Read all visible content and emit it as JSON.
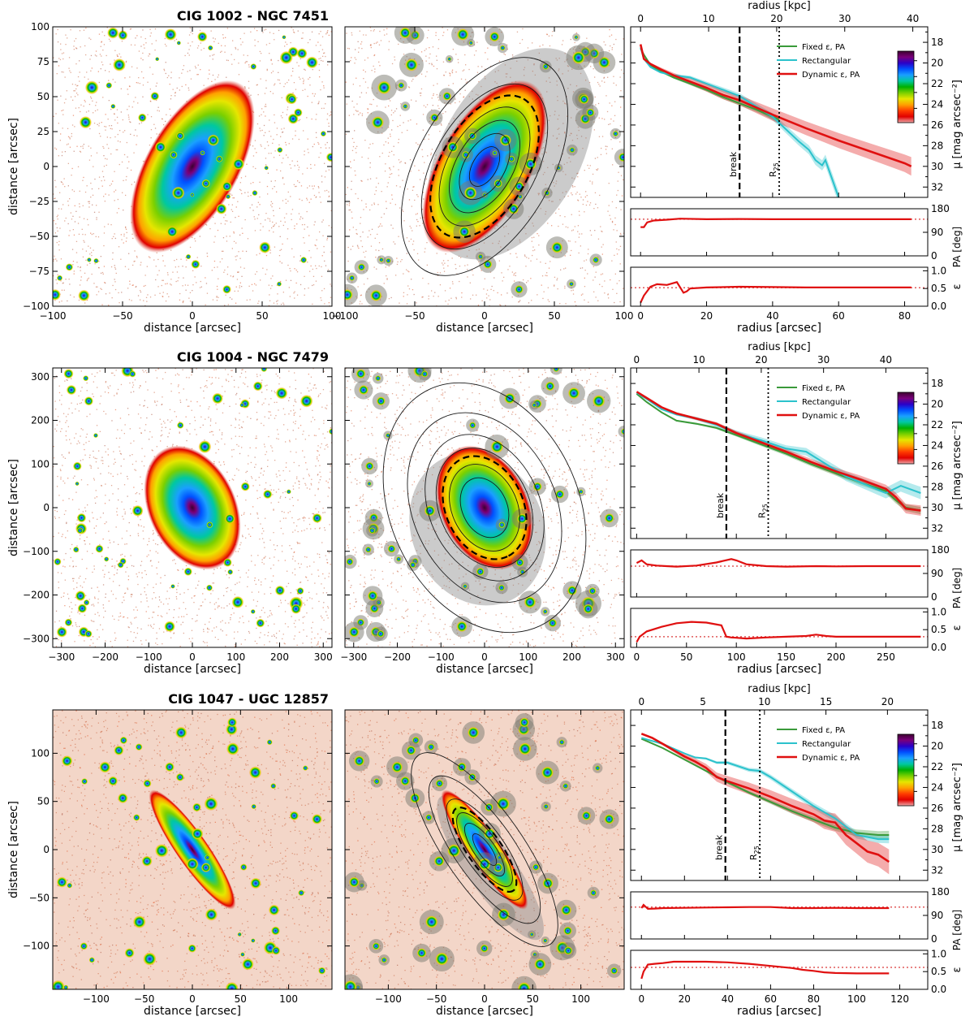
{
  "colors": {
    "fixed": "#3a9a3a",
    "rectangular": "#2bc2cc",
    "dynamic": "#e01010",
    "reference_line": "#e05a5a"
  },
  "colormap": [
    "#3d0030",
    "#7a007a",
    "#2a00c8",
    "#0050ff",
    "#1aa0ff",
    "#00c8a0",
    "#00b000",
    "#7ad000",
    "#e6e600",
    "#ffa000",
    "#ff3c00",
    "#e00000",
    "#f0a8a8"
  ],
  "chart_data": [
    {
      "name": "CIG 1002 - NGC 7451",
      "title": "CIG 1002  -  NGC  7451",
      "image_panels": {
        "xlabel": "distance [arcsec]",
        "ylabel": "distance [arcsec]",
        "xlim": [
          -100,
          100
        ],
        "ylim": [
          -100,
          100
        ],
        "xticks": [
          -100,
          -50,
          0,
          50,
          100
        ],
        "yticks": [
          -100,
          -75,
          -50,
          -25,
          0,
          25,
          50,
          75,
          100
        ],
        "galaxy": {
          "position_angle_deg": 150,
          "ellipticity": 0.52,
          "size_arcsec": 55,
          "background": "white"
        },
        "isophote_radii_arcsec": [
          12,
          20,
          28,
          36,
          50,
          66
        ],
        "break_radius_arcsec": 43
      },
      "profile": {
        "type": "line",
        "top_axis_label": "radius [kpc]",
        "top_ticks": [
          0,
          10,
          20,
          30,
          40
        ],
        "kpc_per_arcsec": 0.485,
        "xlim": [
          -3,
          87
        ],
        "ylabel": "μ [mag arcsec⁻²]",
        "ylim": [
          33,
          16.5
        ],
        "yticks": [
          18,
          20,
          22,
          24,
          26,
          28,
          30,
          32
        ],
        "colorbar_ticks": [
          20,
          22,
          24,
          26
        ],
        "break_x": 30,
        "r25_x": 42,
        "break_label": "break",
        "r25_label": "R25",
        "legend": [
          "Fixed ε, PA",
          "Rectangular",
          "Dynamic ε, PA"
        ],
        "series": [
          {
            "name": "Fixed ε, PA",
            "x": [
              0,
              1,
              3,
              6,
              10,
              15,
              20,
              25,
              30,
              35,
              40,
              42
            ],
            "y": [
              18.6,
              19.2,
              20.2,
              20.8,
              21.4,
              22.0,
              22.6,
              23.3,
              23.9,
              24.5,
              25.2,
              25.5
            ],
            "band": 0.3
          },
          {
            "name": "Rectangular",
            "x": [
              0,
              1,
              3,
              6,
              10,
              15,
              20,
              25,
              30,
              35,
              40,
              44,
              48,
              51,
              53,
              55,
              56,
              58,
              60
            ],
            "y": [
              18.5,
              19.6,
              20.4,
              20.9,
              21.2,
              21.4,
              22.0,
              22.6,
              23.2,
              24.2,
              25.2,
              26.4,
              27.6,
              28.4,
              29.4,
              29.9,
              29.4,
              31.2,
              33
            ],
            "band": 0.6
          },
          {
            "name": "Dynamic ε, PA",
            "x": [
              0,
              1,
              3,
              6,
              10,
              15,
              20,
              25,
              30,
              35,
              40,
              50,
              60,
              70,
              80,
              82
            ],
            "y": [
              18.2,
              19.6,
              20.1,
              20.6,
              21.2,
              21.8,
              22.4,
              23.1,
              23.6,
              24.3,
              25.0,
              26.3,
              27.5,
              28.6,
              29.7,
              30.0
            ],
            "band": 0.9
          }
        ],
        "pa": {
          "ylabel": "PA [deg]",
          "ylim": [
            0,
            180
          ],
          "yticks": [
            0,
            90,
            180
          ],
          "ref": 140,
          "x": [
            0,
            1,
            2,
            4,
            8,
            12,
            20,
            30,
            40,
            50,
            60,
            70,
            80,
            82
          ],
          "y": [
            110,
            110,
            128,
            135,
            138,
            142,
            140,
            141,
            140,
            140,
            140,
            140,
            140,
            140
          ]
        },
        "eps": {
          "ylabel": "ε",
          "ylim": [
            0,
            1.1
          ],
          "yticks": [
            0.0,
            0.5,
            1.0
          ],
          "ref": 0.52,
          "x": [
            0,
            1,
            3,
            5,
            8,
            11,
            13,
            14,
            15,
            20,
            30,
            40,
            50,
            60,
            70,
            82
          ],
          "y": [
            0.1,
            0.3,
            0.55,
            0.62,
            0.6,
            0.68,
            0.38,
            0.42,
            0.5,
            0.53,
            0.55,
            0.54,
            0.53,
            0.53,
            0.53,
            0.53
          ]
        },
        "xlabel": "radius [arcsec]",
        "xticks": [
          0,
          20,
          40,
          60,
          80
        ]
      }
    },
    {
      "name": "CIG 1004 - NGC 7479",
      "title": "CIG 1004  -  NGC  7479",
      "image_panels": {
        "xlabel": "distance [arcsec]",
        "ylabel": "distance [arcsec]",
        "xlim": [
          -320,
          320
        ],
        "ylim": [
          -320,
          320
        ],
        "xticks": [
          -300,
          -200,
          -100,
          0,
          100,
          200,
          300
        ],
        "yticks": [
          -300,
          -200,
          -100,
          0,
          100,
          200,
          300
        ],
        "galaxy": {
          "position_angle_deg": 25,
          "ellipticity": 0.33,
          "size_arcsec": 120,
          "background": "white"
        },
        "isophote_radii_arcsec": [
          55,
          80,
          110,
          135,
          175,
          230
        ],
        "break_radius_arcsec": 95
      },
      "profile": {
        "type": "line",
        "top_axis_label": "radius [kpc]",
        "top_ticks": [
          0,
          10,
          20,
          30,
          40
        ],
        "kpc_per_arcsec": 0.16,
        "xlim": [
          -6,
          292
        ],
        "ylabel": "μ [mag arcsec⁻²]",
        "ylim": [
          33,
          16.5
        ],
        "yticks": [
          18,
          20,
          22,
          24,
          26,
          28,
          30,
          32
        ],
        "colorbar_ticks": [
          20,
          22,
          24,
          26
        ],
        "break_x": 90,
        "r25_x": 132,
        "break_label": "break",
        "r25_label": "R25",
        "legend": [
          "Fixed ε, PA",
          "Rectangular",
          "Dynamic ε, PA"
        ],
        "series": [
          {
            "name": "Fixed ε, PA",
            "x": [
              0,
              10,
              25,
              40,
              60,
              80,
              100,
              125,
              150,
              175,
              200,
              225,
              250,
              260,
              270,
              285
            ],
            "y": [
              19.0,
              19.8,
              20.8,
              21.6,
              21.9,
              22.3,
              23.0,
              23.9,
              24.8,
              25.8,
              26.7,
              27.6,
              28.4,
              29.3,
              30.0,
              30.3
            ],
            "band": 0.35
          },
          {
            "name": "Rectangular",
            "x": [
              0,
              10,
              25,
              40,
              60,
              80,
              100,
              125,
              150,
              170,
              190,
              210,
              230,
              250,
              265,
              285
            ],
            "y": [
              18.9,
              19.5,
              20.5,
              21.0,
              21.4,
              22.0,
              22.8,
              23.5,
              24.3,
              24.6,
              25.8,
              27.0,
              27.8,
              28.6,
              27.9,
              28.6
            ],
            "band": 0.6
          },
          {
            "name": "Dynamic ε, PA",
            "x": [
              0,
              10,
              25,
              40,
              60,
              80,
              100,
              125,
              150,
              175,
              200,
              225,
              250,
              260,
              270,
              285
            ],
            "y": [
              18.8,
              19.4,
              20.3,
              20.9,
              21.4,
              21.9,
              22.8,
              23.7,
              24.6,
              25.6,
              26.5,
              27.3,
              28.2,
              29.0,
              30.1,
              30.3
            ],
            "band": 0.5
          }
        ],
        "pa": {
          "ylabel": "PA [deg]",
          "ylim": [
            0,
            180
          ],
          "yticks": [
            0,
            90,
            180
          ],
          "ref": 118,
          "x": [
            0,
            5,
            10,
            20,
            30,
            40,
            60,
            80,
            95,
            100,
            110,
            130,
            150,
            180,
            200,
            230,
            260,
            285
          ],
          "y": [
            130,
            140,
            125,
            120,
            118,
            116,
            120,
            132,
            145,
            140,
            125,
            118,
            116,
            118,
            117,
            118,
            118,
            118
          ]
        },
        "eps": {
          "ylabel": "ε",
          "ylim": [
            0,
            1.1
          ],
          "yticks": [
            0.0,
            0.5,
            1.0
          ],
          "ref": 0.3,
          "x": [
            0,
            3,
            10,
            25,
            40,
            55,
            70,
            85,
            90,
            95,
            100,
            110,
            130,
            150,
            170,
            180,
            190,
            200,
            220,
            250,
            285
          ],
          "y": [
            0.15,
            0.3,
            0.45,
            0.58,
            0.68,
            0.72,
            0.7,
            0.62,
            0.3,
            0.28,
            0.27,
            0.25,
            0.28,
            0.3,
            0.32,
            0.36,
            0.32,
            0.3,
            0.3,
            0.3,
            0.3
          ]
        },
        "xlabel": "radius [arcsec]",
        "xticks": [
          0,
          50,
          100,
          150,
          200,
          250
        ]
      }
    },
    {
      "name": "CIG 1047 - UGC 12857",
      "title": "CIG 1047  -  UGC  12857",
      "image_panels": {
        "xlabel": "distance [arcsec]",
        "ylabel": "distance [arcsec]",
        "xlim": [
          -145,
          145
        ],
        "ylim": [
          -145,
          145
        ],
        "xticks": [
          -100,
          -50,
          0,
          50,
          100
        ],
        "yticks": [
          -100,
          -50,
          0,
          50,
          100
        ],
        "galaxy": {
          "position_angle_deg": 35,
          "ellipticity": 0.78,
          "size_arcsec": 60,
          "background": "#f3d6c8"
        },
        "isophote_radii_arcsec": [
          15,
          25,
          35,
          48,
          70,
          92
        ],
        "break_radius_arcsec": 40
      },
      "profile": {
        "type": "line",
        "top_axis_label": "radius [kpc]",
        "top_ticks": [
          0,
          5,
          10,
          15,
          20
        ],
        "kpc_per_arcsec": 0.175,
        "xlim": [
          -5,
          133
        ],
        "ylabel": "μ [mag arcsec⁻²]",
        "ylim": [
          33,
          16.5
        ],
        "yticks": [
          18,
          20,
          22,
          24,
          26,
          28,
          30,
          32
        ],
        "colorbar_ticks": [
          20,
          22,
          24,
          26
        ],
        "break_x": 39,
        "r25_x": 55,
        "break_label": "break",
        "r25_label": "R25",
        "legend": [
          "Fixed ε, PA",
          "Rectangular",
          "Dynamic ε, PA"
        ],
        "series": [
          {
            "name": "Fixed ε, PA",
            "x": [
              0,
              10,
              20,
              30,
              40,
              50,
              60,
              70,
              80,
              90,
              100,
              110,
              115
            ],
            "y": [
              19.3,
              20.2,
              21.3,
              22.4,
              23.5,
              24.5,
              25.4,
              26.3,
              27.1,
              27.9,
              28.4,
              28.6,
              28.6
            ],
            "band": 0.4
          },
          {
            "name": "Rectangular",
            "x": [
              0,
              10,
              20,
              25,
              30,
              35,
              40,
              50,
              55,
              60,
              70,
              80,
              90,
              100,
              110,
              115
            ],
            "y": [
              19.2,
              19.8,
              20.7,
              21.1,
              21.2,
              21.6,
              21.6,
              22.3,
              22.4,
              23.0,
              24.4,
              25.8,
              27.0,
              28.6,
              29.0,
              29.0
            ],
            "band": 0.4
          },
          {
            "name": "Dynamic ε, PA",
            "x": [
              0,
              5,
              10,
              15,
              20,
              25,
              30,
              35,
              40,
              50,
              60,
              70,
              80,
              85,
              90,
              95,
              100,
              105,
              110,
              115
            ],
            "y": [
              18.8,
              19.2,
              19.8,
              20.4,
              21.0,
              21.5,
              22.1,
              23.0,
              23.4,
              24.1,
              24.9,
              25.8,
              26.6,
              27.2,
              27.4,
              28.6,
              29.4,
              30.2,
              30.5,
              31.2
            ],
            "band": 1.2
          }
        ],
        "pa": {
          "ylabel": "PA [deg]",
          "ylim": [
            0,
            180
          ],
          "yticks": [
            0,
            90,
            180
          ],
          "ref": 122,
          "x": [
            0,
            1,
            3,
            6,
            10,
            20,
            30,
            40,
            50,
            60,
            70,
            80,
            90,
            100,
            110,
            115
          ],
          "y": [
            118,
            130,
            115,
            116,
            118,
            119,
            120,
            121,
            122,
            122,
            118,
            118,
            119,
            118,
            118,
            118
          ]
        },
        "eps": {
          "ylabel": "ε",
          "ylim": [
            0,
            1.1
          ],
          "yticks": [
            0.0,
            0.5,
            1.0
          ],
          "ref": 0.62,
          "x": [
            0,
            1,
            3,
            6,
            10,
            15,
            20,
            30,
            40,
            50,
            60,
            70,
            75,
            80,
            85,
            90,
            100,
            110,
            115
          ],
          "y": [
            0.3,
            0.5,
            0.7,
            0.72,
            0.74,
            0.78,
            0.78,
            0.78,
            0.76,
            0.72,
            0.66,
            0.6,
            0.55,
            0.52,
            0.48,
            0.46,
            0.45,
            0.45,
            0.45
          ]
        },
        "xlabel": "radius [arcsec]",
        "xticks": [
          0,
          20,
          40,
          60,
          80,
          100,
          120
        ]
      }
    }
  ]
}
